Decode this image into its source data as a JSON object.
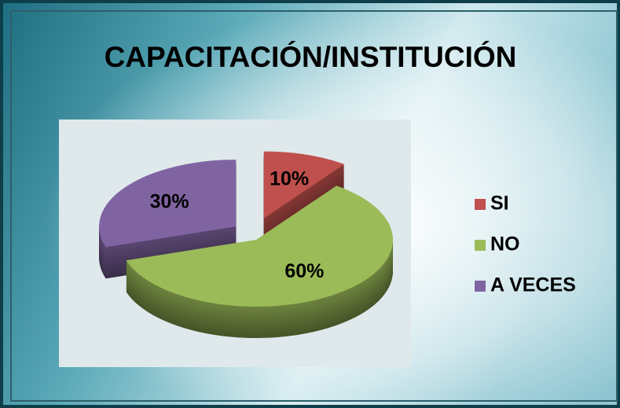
{
  "chart_data": {
    "type": "pie",
    "title": "CAPACITACIÓN/INSTITUCIÓN",
    "categories": [
      "SI",
      "NO",
      "A VECES"
    ],
    "values": [
      10,
      60,
      30
    ],
    "value_labels": [
      "10%",
      "60%",
      "30%"
    ],
    "colors": [
      "#c0504d",
      "#9bbb59",
      "#8064a2"
    ],
    "legend": "right"
  }
}
